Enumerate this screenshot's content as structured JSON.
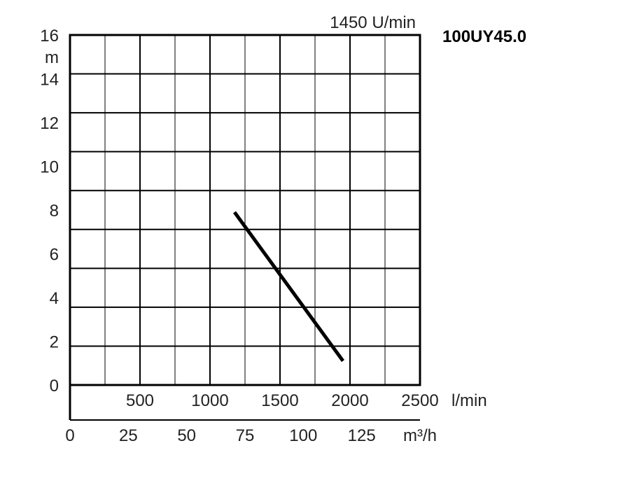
{
  "chart_data": {
    "type": "line",
    "title": "100UY45.0",
    "speed_label": "1450 U/min",
    "ylabel": "m",
    "ylim": [
      0,
      16
    ],
    "y_ticks": [
      "0",
      "2",
      "4",
      "6",
      "8",
      "10",
      "12",
      "14",
      "16"
    ],
    "xlim": [
      0,
      2500
    ],
    "x_ticks_lmin": [
      "500",
      "1000",
      "1500",
      "2000",
      "2500"
    ],
    "x_unit_lmin": "l/min",
    "x_ticks_m3h": [
      "0",
      "25",
      "50",
      "75",
      "100",
      "125"
    ],
    "x_unit_m3h": "m³/h",
    "grid": true,
    "series": [
      {
        "x": [
          1175,
          1950
        ],
        "y": [
          7.9,
          1.1
        ]
      }
    ]
  }
}
